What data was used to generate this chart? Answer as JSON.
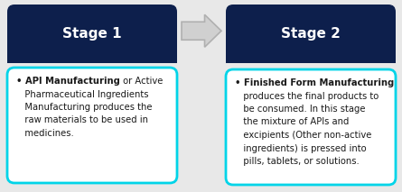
{
  "background_color": "#e8e8e8",
  "stage1_header": "Stage 1",
  "stage2_header": "Stage 2",
  "header_bg": "#0d1f4c",
  "header_text_color": "#ffffff",
  "box_bg": "#ffffff",
  "box_border_color": "#00d4e8",
  "arrow_color": "#d0d0d0",
  "arrow_edge_color": "#b0b0b0",
  "fig_width": 4.45,
  "fig_height": 2.13,
  "dpi": 100,
  "stage1_lines": [
    {
      "bold": "• API Manufacturing",
      "normal": " or Active"
    },
    {
      "bold": "",
      "normal": "   Pharmaceutical Ingredients"
    },
    {
      "bold": "",
      "normal": "   Manufacturing produces the"
    },
    {
      "bold": "",
      "normal": "   raw materials to be used in"
    },
    {
      "bold": "",
      "normal": "   medicines."
    }
  ],
  "stage2_lines": [
    {
      "bold": "• Finished Form Manufacturing",
      "normal": ""
    },
    {
      "bold": "",
      "normal": "   produces the final products to"
    },
    {
      "bold": "",
      "normal": "   be consumed. In this stage"
    },
    {
      "bold": "",
      "normal": "   the mixture of APIs and"
    },
    {
      "bold": "",
      "normal": "   excipients (Other non-active"
    },
    {
      "bold": "",
      "normal": "   ingredients) is pressed into"
    },
    {
      "bold": "",
      "normal": "   pills, tablets, or solutions."
    }
  ]
}
